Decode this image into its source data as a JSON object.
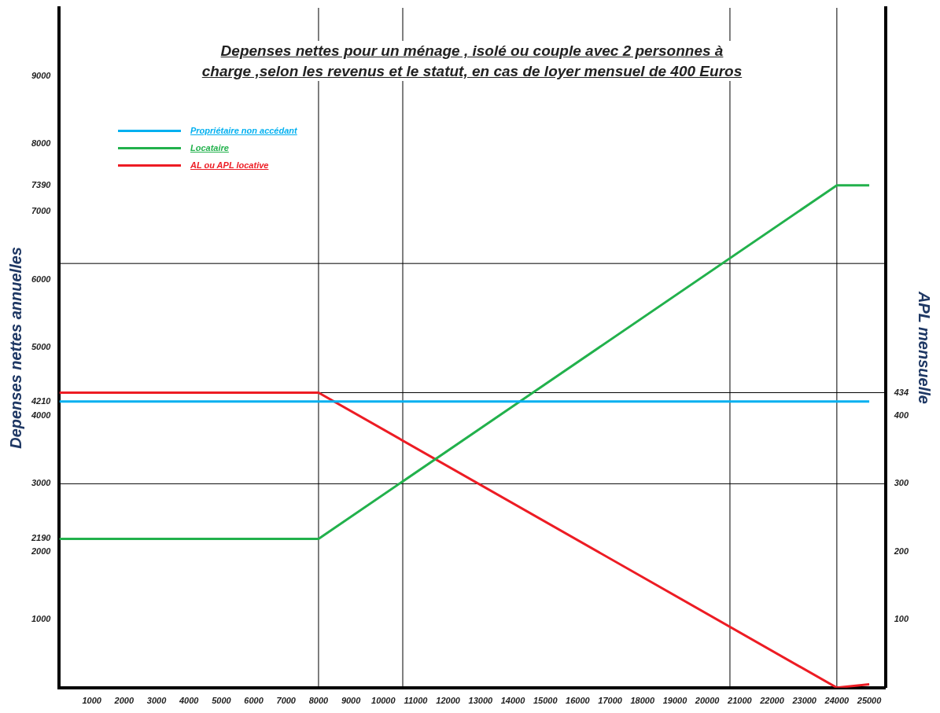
{
  "chart_data": {
    "type": "line",
    "title": "Depenses nettes pour un ménage , isolé ou couple avec 2 personnes à charge ,selon les revenus et le statut, en cas de loyer mensuel de 400 Euros",
    "ylabel": "Depenses nettes annuelles",
    "y2label": "APL mensuelle",
    "series": [
      {
        "name": "Propriétaire non accédant",
        "color": "#00b0f0",
        "x": [
          0,
          25000
        ],
        "values": [
          4210,
          4210
        ]
      },
      {
        "name": "Locataire",
        "color": "#22b14c",
        "x": [
          0,
          8000,
          24000,
          25000
        ],
        "values": [
          2190,
          2190,
          7390,
          7390
        ]
      },
      {
        "name": "AL ou APL locative",
        "color": "#ed1c24",
        "axis": "y2",
        "x": [
          0,
          8000,
          24000,
          25000
        ],
        "values": [
          434,
          434,
          0,
          5
        ]
      }
    ],
    "xlim": [
      0,
      25500
    ],
    "xticks": [
      1000,
      2000,
      3000,
      4000,
      5000,
      6000,
      7000,
      8000,
      9000,
      10000,
      11000,
      12000,
      13000,
      14000,
      15000,
      16000,
      17000,
      18000,
      19000,
      20000,
      21000,
      22000,
      23000,
      24000,
      25000
    ],
    "ylim": [
      0,
      10000
    ],
    "yticks": [
      1000,
      2000,
      2190,
      3000,
      4000,
      4210,
      5000,
      6000,
      7000,
      7390,
      8000,
      9000
    ],
    "y2lim": [
      0,
      1000
    ],
    "y2ticks": [
      100,
      200,
      300,
      400,
      434
    ],
    "ref_lines": [
      {
        "axis": "x",
        "value": 8000,
        "color": "#000000"
      },
      {
        "axis": "x",
        "value": 10600,
        "color": "#000000"
      },
      {
        "axis": "x",
        "value": 20700,
        "color": "#000000"
      },
      {
        "axis": "x",
        "value": 24000,
        "color": "#000000"
      },
      {
        "axis": "y",
        "value": 3000,
        "color": "#000000"
      },
      {
        "axis": "y",
        "value": 6240,
        "color": "#000000"
      },
      {
        "axis": "y2",
        "value": 434,
        "color": "#000000"
      }
    ],
    "grid": false,
    "legend": "top left",
    "marker": "none",
    "line_style": "solid"
  }
}
